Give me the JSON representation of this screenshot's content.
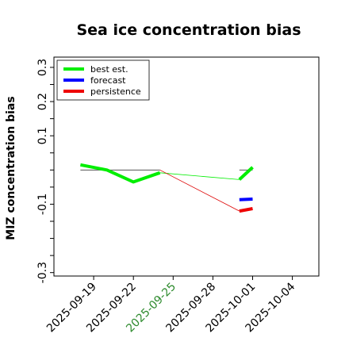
{
  "chart_data": {
    "type": "line",
    "title": "Sea ice concentration bias",
    "xlabel": "",
    "ylabel": "MIZ concentration bias",
    "xlim": [
      "2025-09-16",
      "2025-10-06"
    ],
    "ylim": [
      -0.31,
      0.33
    ],
    "yticks": [
      {
        "value": 0.3,
        "label": "0.3"
      },
      {
        "value": 0.25,
        "label": ""
      },
      {
        "value": 0.2,
        "label": "0.2"
      },
      {
        "value": 0.15,
        "label": ""
      },
      {
        "value": 0.1,
        "label": "0.1"
      },
      {
        "value": 0.05,
        "label": ""
      },
      {
        "value": 0.0,
        "label": ""
      },
      {
        "value": -0.05,
        "label": ""
      },
      {
        "value": -0.1,
        "label": "-0.1"
      },
      {
        "value": -0.15,
        "label": ""
      },
      {
        "value": -0.2,
        "label": ""
      },
      {
        "value": -0.25,
        "label": ""
      },
      {
        "value": -0.3,
        "label": "-0.3"
      }
    ],
    "xticks": [
      {
        "value": "2025-09-19",
        "label": "2025-09-19",
        "color": "#000000"
      },
      {
        "value": "2025-09-22",
        "label": "2025-09-22",
        "color": "#000000"
      },
      {
        "value": "2025-09-25",
        "label": "2025-09-25",
        "color": "#2e8b2e"
      },
      {
        "value": "2025-09-28",
        "label": "2025-09-28",
        "color": "#000000"
      },
      {
        "value": "2025-10-01",
        "label": "2025-10-01",
        "color": "#000000"
      },
      {
        "value": "2025-10-04",
        "label": "2025-10-04",
        "color": "#000000"
      }
    ],
    "legend": {
      "placement": "upper-left"
    },
    "reference_line": {
      "value": 0,
      "segments": [
        [
          "2025-09-18",
          "2025-09-24"
        ],
        [
          "2025-09-30",
          "2025-10-01"
        ]
      ]
    },
    "series": [
      {
        "name": "best est.",
        "color": "#00ee00",
        "width": 4,
        "x": [
          "2025-09-18",
          "2025-09-20",
          "2025-09-22",
          "2025-09-24"
        ],
        "y": [
          0.015,
          0.0,
          -0.035,
          -0.008
        ]
      },
      {
        "name": "best est.",
        "color": "#00ee00",
        "width": 0.8,
        "legend": false,
        "x": [
          "2025-09-24",
          "2025-09-30"
        ],
        "y": [
          -0.008,
          -0.028
        ]
      },
      {
        "name": "best est.",
        "color": "#00ee00",
        "width": 4,
        "legend": false,
        "x": [
          "2025-09-30",
          "2025-10-01"
        ],
        "y": [
          -0.028,
          0.008
        ]
      },
      {
        "name": "forecast",
        "color": "#0000ff",
        "width": 4,
        "x": [
          "2025-09-30",
          "2025-10-01"
        ],
        "y": [
          -0.087,
          -0.085
        ]
      },
      {
        "name": "persistence",
        "color": "#dd0000",
        "width": 0.8,
        "legend": false,
        "x": [
          "2025-09-24",
          "2025-09-30"
        ],
        "y": [
          0.0,
          -0.12
        ]
      },
      {
        "name": "persistence",
        "color": "#ee0000",
        "width": 4,
        "x": [
          "2025-09-30",
          "2025-10-01"
        ],
        "y": [
          -0.12,
          -0.113
        ]
      }
    ]
  }
}
